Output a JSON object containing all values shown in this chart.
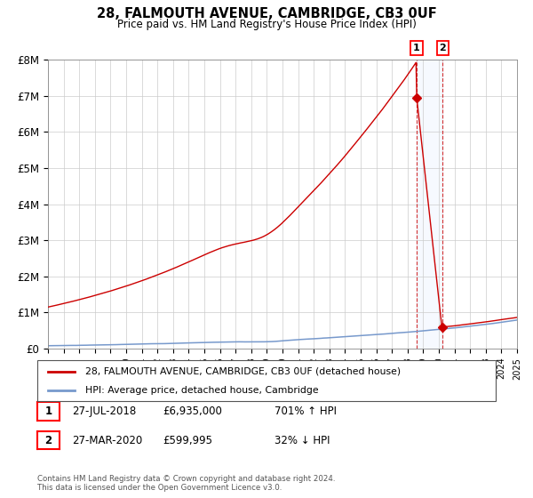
{
  "title": "28, FALMOUTH AVENUE, CAMBRIDGE, CB3 0UF",
  "subtitle": "Price paid vs. HM Land Registry's House Price Index (HPI)",
  "hpi_label": "HPI: Average price, detached house, Cambridge",
  "property_label": "28, FALMOUTH AVENUE, CAMBRIDGE, CB3 0UF (detached house)",
  "property_color": "#cc0000",
  "hpi_color": "#7799cc",
  "annotation1": {
    "num": "1",
    "date": "27-JUL-2018",
    "price": "£6,935,000",
    "hpi": "701% ↑ HPI"
  },
  "annotation2": {
    "num": "2",
    "date": "27-MAR-2020",
    "price": "£599,995",
    "hpi": "32% ↓ HPI"
  },
  "ylim": [
    0,
    8000000
  ],
  "yticks": [
    0,
    1000000,
    2000000,
    3000000,
    4000000,
    5000000,
    6000000,
    7000000,
    8000000
  ],
  "ytick_labels": [
    "£0",
    "£1M",
    "£2M",
    "£3M",
    "£4M",
    "£5M",
    "£6M",
    "£7M",
    "£8M"
  ],
  "footer": "Contains HM Land Registry data © Crown copyright and database right 2024.\nThis data is licensed under the Open Government Licence v3.0.",
  "background_color": "#ffffff",
  "grid_color": "#cccccc",
  "point1_x": 2018.58,
  "point1_y": 6935000,
  "point2_x": 2020.24,
  "point2_y": 599995,
  "xmin": 1995,
  "xmax": 2025
}
